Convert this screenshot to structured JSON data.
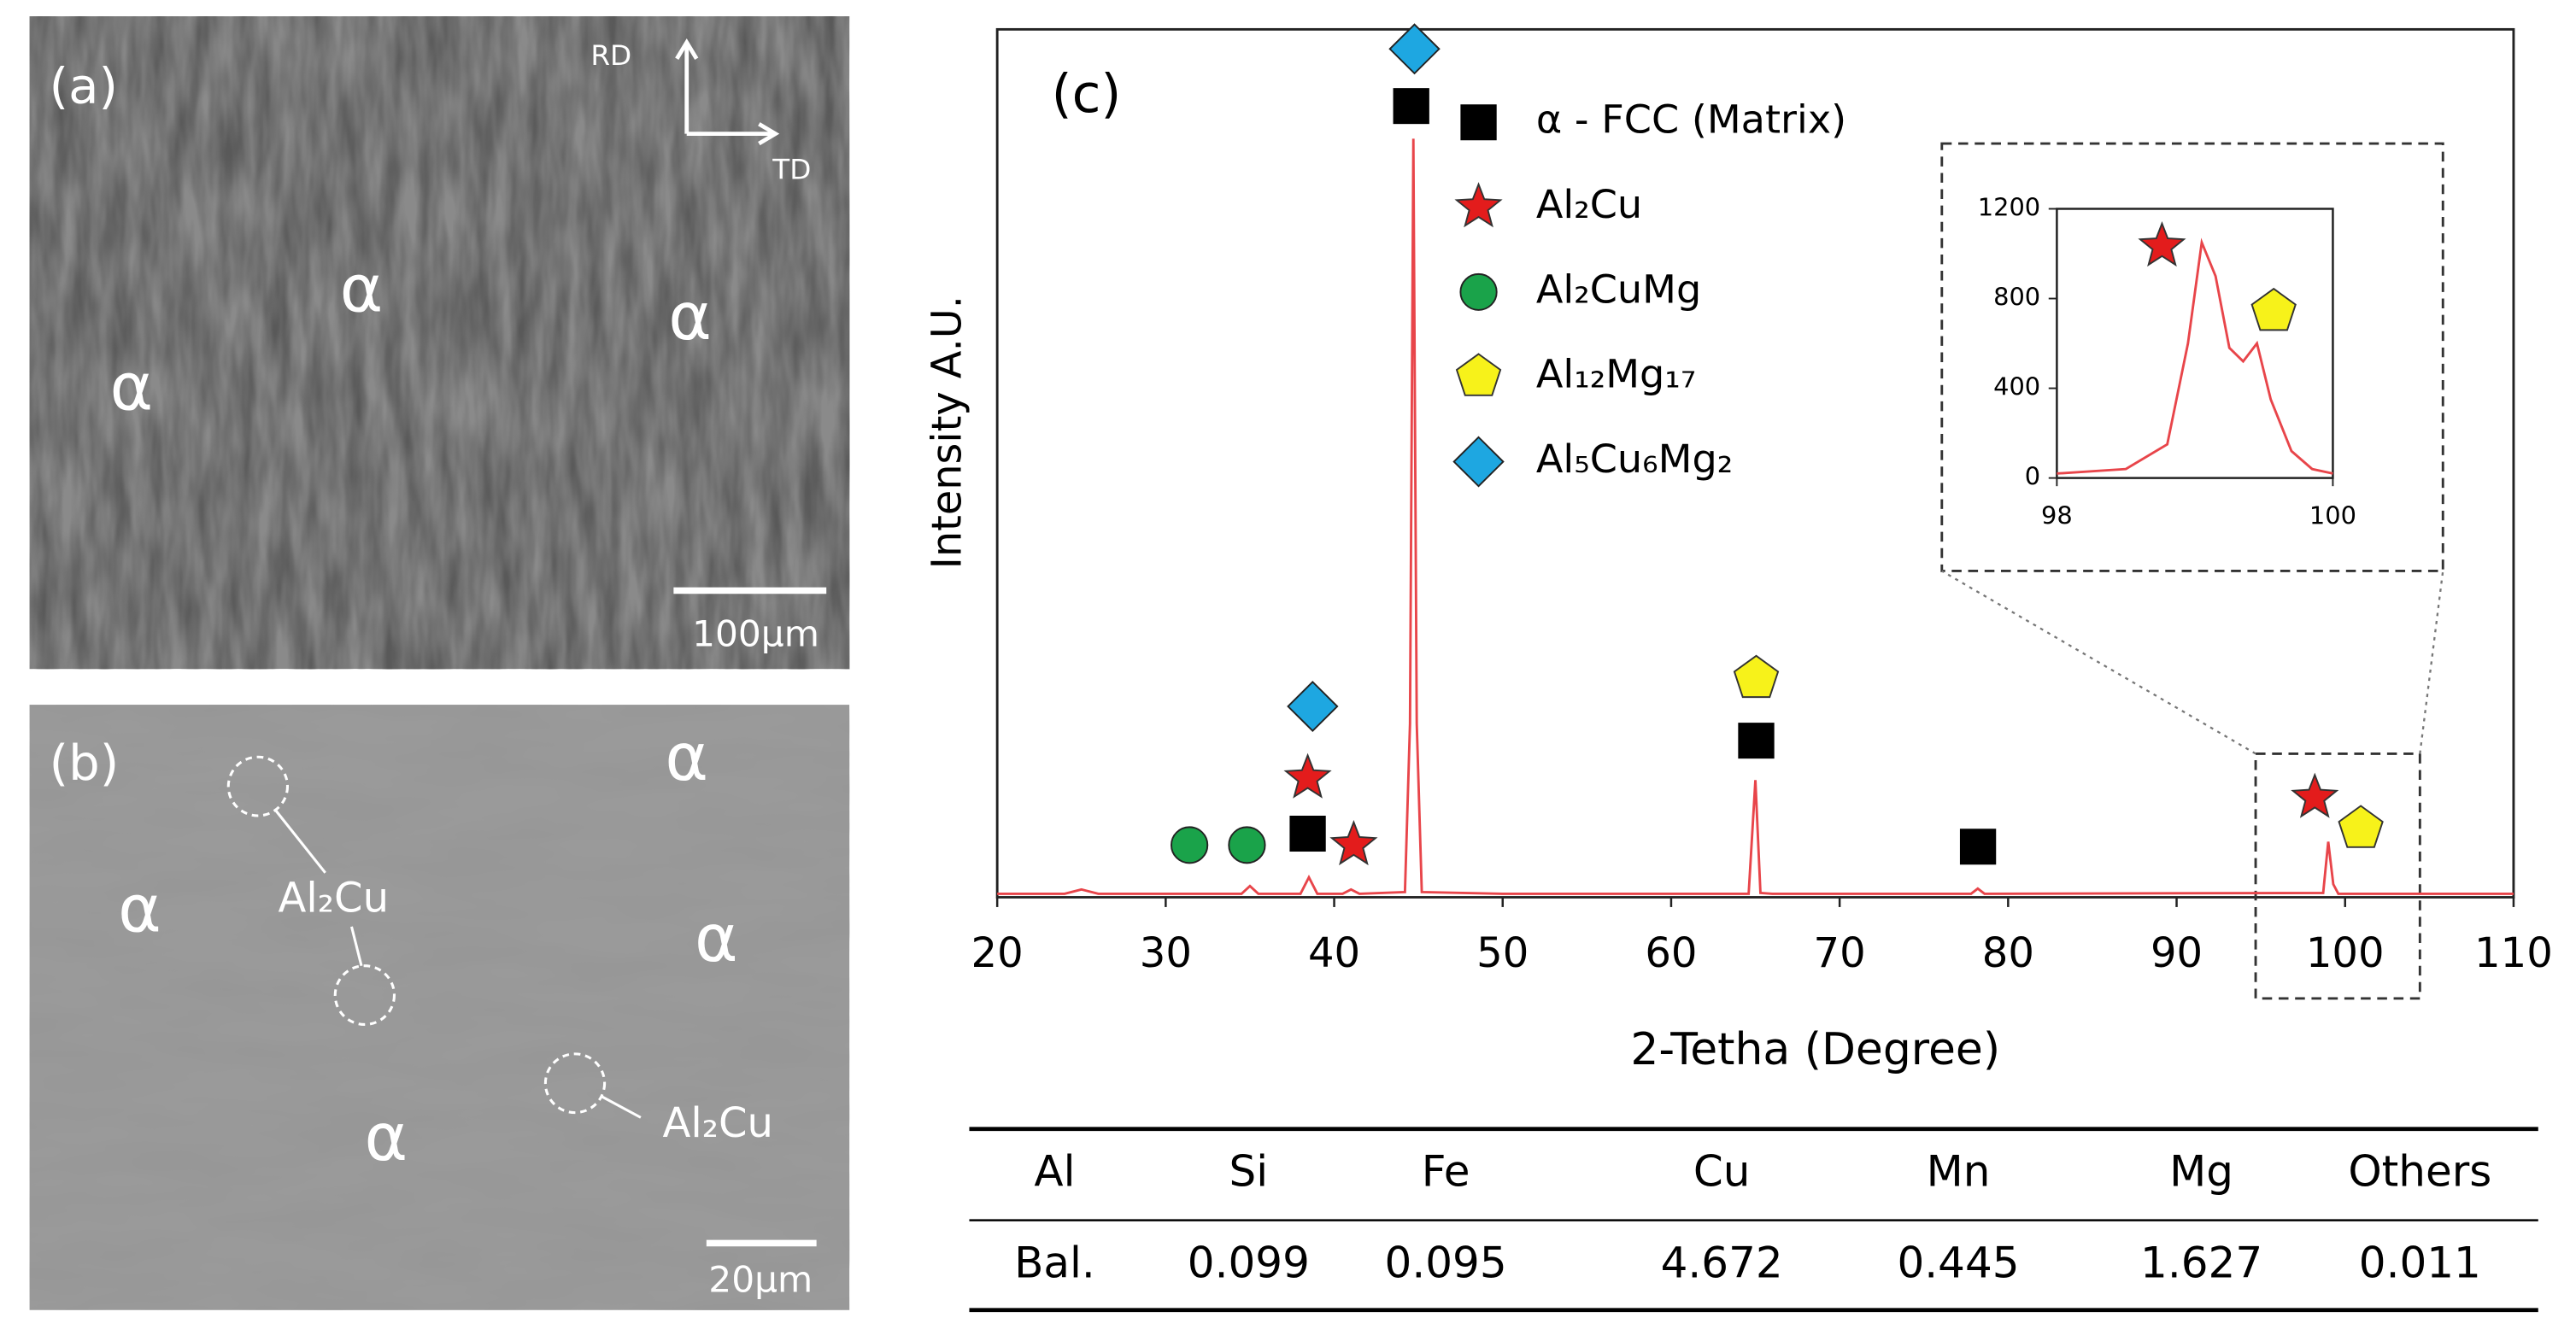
{
  "panels": {
    "a": {
      "label": "(a)",
      "rd": "RD",
      "td": "TD",
      "scale": "100μm",
      "phases": [
        "α",
        "α",
        "α"
      ]
    },
    "b": {
      "label": "(b)",
      "scale": "20μm",
      "phases": [
        "α",
        "α",
        "α",
        "α"
      ],
      "annotations": [
        "Al₂Cu",
        "Al₂Cu"
      ]
    }
  },
  "chart_data": {
    "type": "line",
    "panel_label": "(c)",
    "xlabel": "2-Tetha (Degree)",
    "ylabel": "Intensity A.U.",
    "xlim": [
      20,
      110
    ],
    "xticks": [
      20,
      30,
      40,
      50,
      60,
      70,
      80,
      90,
      100,
      110
    ],
    "ylim": [
      0,
      100
    ],
    "color": "#e8454a",
    "x": [
      20,
      24,
      25,
      26,
      34.5,
      35,
      35.5,
      38,
      38.5,
      39,
      40.5,
      41,
      41.5,
      44.2,
      44.5,
      44.7,
      44.9,
      45.2,
      50,
      64.6,
      65,
      65.3,
      66,
      77.8,
      78.2,
      78.6,
      98.7,
      99,
      99.3,
      99.6,
      110
    ],
    "values": [
      0.4,
      0.4,
      0.9,
      0.4,
      0.4,
      1.3,
      0.4,
      0.4,
      2.3,
      0.4,
      0.4,
      0.9,
      0.4,
      0.6,
      20,
      87.4,
      20,
      0.6,
      0.4,
      0.4,
      13.5,
      0.5,
      0.4,
      0.4,
      1,
      0.4,
      0.5,
      6.4,
      1.5,
      0.4,
      0.4
    ],
    "legend": [
      "α - FCC (Matrix)",
      "Al₂Cu",
      "Al₂CuMg",
      "Al₁₂Mg₁₇",
      "Al₅Cu₆Mg₂"
    ],
    "inset": {
      "xlim": [
        98,
        100
      ],
      "xticks": [
        98,
        100
      ],
      "ylim": [
        0,
        1200
      ],
      "yticks": [
        0,
        400,
        800,
        1200
      ],
      "x": [
        98,
        98.5,
        98.8,
        98.95,
        99.05,
        99.15,
        99.25,
        99.35,
        99.45,
        99.55,
        99.7,
        99.85,
        100
      ],
      "values": [
        20,
        40,
        150,
        600,
        1050,
        900,
        580,
        520,
        600,
        350,
        120,
        40,
        20
      ]
    }
  },
  "table": {
    "header": [
      "Al",
      "Si",
      "Fe",
      "Cu",
      "Mn",
      "Mg",
      "Others"
    ],
    "rows": [
      [
        "Bal.",
        "0.099",
        "0.095",
        "4.672",
        "0.445",
        "1.627",
        "0.011"
      ]
    ]
  }
}
